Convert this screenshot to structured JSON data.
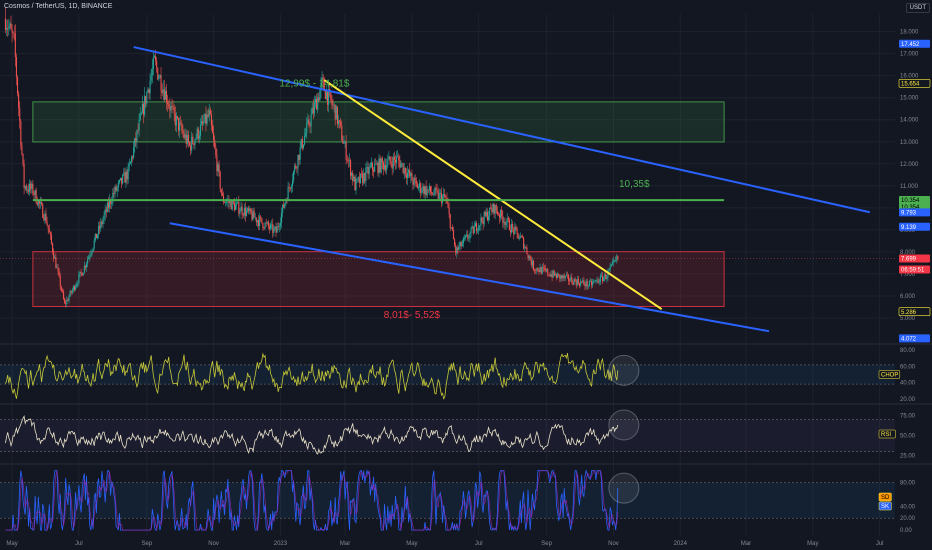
{
  "header": {
    "title": "Cosmos / TetherUS, 1D, BINANCE",
    "currency": "USDT"
  },
  "colors": {
    "background": "#131722",
    "up": "#26a69a",
    "down": "#ef5350",
    "channel": "#2962ff",
    "trendline": "#ffeb3b",
    "support_line": "#4caf50",
    "resistance_zone": "#4caf50",
    "demand_zone": "#f23645",
    "chop": "#c6c837",
    "rsi": "#e8e1c8",
    "stoch_k": "#2962ff",
    "stoch_d": "#9c27b0"
  },
  "chart_data": {
    "type": "candlestick",
    "symbol": "Cosmos / TetherUS",
    "timeframe": "1D",
    "exchange": "BINANCE",
    "ylim": [
      4.0,
      18.8
    ],
    "xlim": [
      "2022-04-20",
      "2024-07-15"
    ],
    "y_ticks": [
      "18.000",
      "17.000",
      "16.000",
      "15.000",
      "14.000",
      "13.000",
      "12.000",
      "11.000",
      "10.000",
      "9.000",
      "8.000",
      "7.000",
      "6.000",
      "5.000"
    ],
    "x_ticks": [
      {
        "label": "May",
        "date": "2022-05-01"
      },
      {
        "label": "Jul",
        "date": "2022-07-01"
      },
      {
        "label": "Sep",
        "date": "2022-09-01"
      },
      {
        "label": "Nov",
        "date": "2022-11-01"
      },
      {
        "label": "2023",
        "date": "2023-01-01"
      },
      {
        "label": "Mar",
        "date": "2023-03-01"
      },
      {
        "label": "May",
        "date": "2023-05-01"
      },
      {
        "label": "Jul",
        "date": "2023-07-01"
      },
      {
        "label": "Sep",
        "date": "2023-09-01"
      },
      {
        "label": "Nov",
        "date": "2023-11-01"
      },
      {
        "label": "2024",
        "date": "2024-01-01"
      },
      {
        "label": "Mar",
        "date": "2024-03-01"
      },
      {
        "label": "May",
        "date": "2024-05-01"
      },
      {
        "label": "Jul",
        "date": "2024-07-01"
      }
    ],
    "price_path": [
      {
        "date": "2022-04-25",
        "price": 18.6
      },
      {
        "date": "2022-05-03",
        "price": 17.5
      },
      {
        "date": "2022-05-12",
        "price": 11.0
      },
      {
        "date": "2022-05-20",
        "price": 10.8
      },
      {
        "date": "2022-06-01",
        "price": 9.5
      },
      {
        "date": "2022-06-18",
        "price": 5.6
      },
      {
        "date": "2022-07-05",
        "price": 7.2
      },
      {
        "date": "2022-08-01",
        "price": 10.6
      },
      {
        "date": "2022-08-15",
        "price": 11.6
      },
      {
        "date": "2022-09-01",
        "price": 15.2
      },
      {
        "date": "2022-09-08",
        "price": 16.6
      },
      {
        "date": "2022-09-25",
        "price": 14.2
      },
      {
        "date": "2022-10-10",
        "price": 12.8
      },
      {
        "date": "2022-10-28",
        "price": 14.2
      },
      {
        "date": "2022-11-09",
        "price": 10.4
      },
      {
        "date": "2022-12-01",
        "price": 9.8
      },
      {
        "date": "2022-12-28",
        "price": 8.9
      },
      {
        "date": "2023-01-20",
        "price": 12.8
      },
      {
        "date": "2023-02-08",
        "price": 15.6
      },
      {
        "date": "2023-02-20",
        "price": 14.4
      },
      {
        "date": "2023-03-10",
        "price": 11.0
      },
      {
        "date": "2023-03-25",
        "price": 11.8
      },
      {
        "date": "2023-04-18",
        "price": 12.2
      },
      {
        "date": "2023-05-05",
        "price": 11.0
      },
      {
        "date": "2023-06-01",
        "price": 10.4
      },
      {
        "date": "2023-06-10",
        "price": 8.0
      },
      {
        "date": "2023-07-01",
        "price": 9.3
      },
      {
        "date": "2023-07-15",
        "price": 10.0
      },
      {
        "date": "2023-08-10",
        "price": 8.5
      },
      {
        "date": "2023-08-20",
        "price": 7.3
      },
      {
        "date": "2023-09-10",
        "price": 6.9
      },
      {
        "date": "2023-10-10",
        "price": 6.5
      },
      {
        "date": "2023-10-25",
        "price": 6.9
      },
      {
        "date": "2023-11-05",
        "price": 7.7
      }
    ],
    "lines": [
      {
        "name": "upper-channel",
        "color": "#2962ff",
        "from": {
          "date": "2022-08-20",
          "price": 17.3
        },
        "to": {
          "date": "2024-06-22",
          "price": 9.8
        }
      },
      {
        "name": "lower-channel",
        "color": "#2962ff",
        "from": {
          "date": "2022-09-22",
          "price": 9.3
        },
        "to": {
          "date": "2024-03-22",
          "price": 4.4
        }
      },
      {
        "name": "descending-trendline",
        "color": "#ffeb3b",
        "from": {
          "date": "2023-02-10",
          "price": 15.8
        },
        "to": {
          "date": "2023-12-15",
          "price": 5.4
        }
      },
      {
        "name": "support-line",
        "color": "#4caf50",
        "from": {
          "date": "2022-05-20",
          "price": 10.35
        },
        "to": {
          "date": "2024-02-10",
          "price": 10.35
        }
      }
    ],
    "zones": [
      {
        "name": "resistance-zone",
        "label": "12,99$ - 14,81$",
        "low": 12.99,
        "high": 14.81,
        "from": "2022-05-20",
        "to": "2024-02-10",
        "color": "#4caf50"
      },
      {
        "name": "demand-zone",
        "label": "8,01$- 5,52$",
        "low": 5.52,
        "high": 8.01,
        "from": "2022-05-20",
        "to": "2024-02-10",
        "color": "#f23645"
      }
    ],
    "annotations": [
      {
        "text": "12,99$ - 14,81$",
        "date": "2023-02-01",
        "price": 15.5,
        "color": "#4caf50"
      },
      {
        "text": "10,35$",
        "date": "2023-11-20",
        "price": 10.95,
        "color": "#4caf50"
      },
      {
        "text": "8,01$- 5,52$",
        "date": "2023-05-01",
        "price": 5.0,
        "color": "#f23645"
      }
    ],
    "price_badges": [
      {
        "value": "17.452",
        "color": "#2962ff",
        "text_color": "#ffffff"
      },
      {
        "value": "15.654",
        "color": "#131722",
        "text_color": "#ffeb3b",
        "border": "#ffeb3b"
      },
      {
        "value": "10.354",
        "color": "#4caf50",
        "text_color": "#000000"
      },
      {
        "value": "10.354",
        "color": "#4caf50",
        "text_color": "#000000",
        "offset": 1
      },
      {
        "value": "9.793",
        "color": "#2962ff",
        "text_color": "#ffffff"
      },
      {
        "value": "9.139",
        "color": "#2962ff",
        "text_color": "#ffffff"
      },
      {
        "value": "7.699",
        "color": "#f23645",
        "text_color": "#ffffff"
      },
      {
        "value": "06:59:51",
        "color": "#f23645",
        "text_color": "#ffffff",
        "at": 7.2
      },
      {
        "value": "5.286",
        "color": "#131722",
        "text_color": "#ffeb3b",
        "border": "#ffeb3b"
      },
      {
        "value": "4.072",
        "color": "#2962ff",
        "text_color": "#ffffff"
      }
    ],
    "indicators": [
      {
        "name": "CHOP",
        "color": "#c6c837",
        "badge_bg": "#131722",
        "badge_text": "#ffeb3b",
        "ylim": [
          15,
          85
        ],
        "ticks": [
          "80.00",
          "60.00",
          "40.00",
          "20.00"
        ],
        "bands": [
          61.8,
          38.2
        ]
      },
      {
        "name": "RSI",
        "color": "#e8e1c8",
        "badge_bg": "#131722",
        "badge_text": "#ffeb3b",
        "ylim": [
          17,
          87
        ],
        "ticks": [
          "75.00",
          "50.00",
          "25.00"
        ],
        "bands": [
          70,
          30
        ]
      },
      {
        "name": "Stoch",
        "color": "#2962ff",
        "ylim": [
          -10,
          108
        ],
        "ticks": [
          "80.00",
          "40.00",
          "20.00",
          "0.00"
        ],
        "bands": [
          80,
          20
        ],
        "badges": [
          {
            "text": "SD",
            "bg": "#ff9800",
            "fg": "#000000"
          },
          {
            "text": "SK",
            "bg": "#2962ff",
            "fg": "#ffffff"
          }
        ]
      }
    ]
  }
}
